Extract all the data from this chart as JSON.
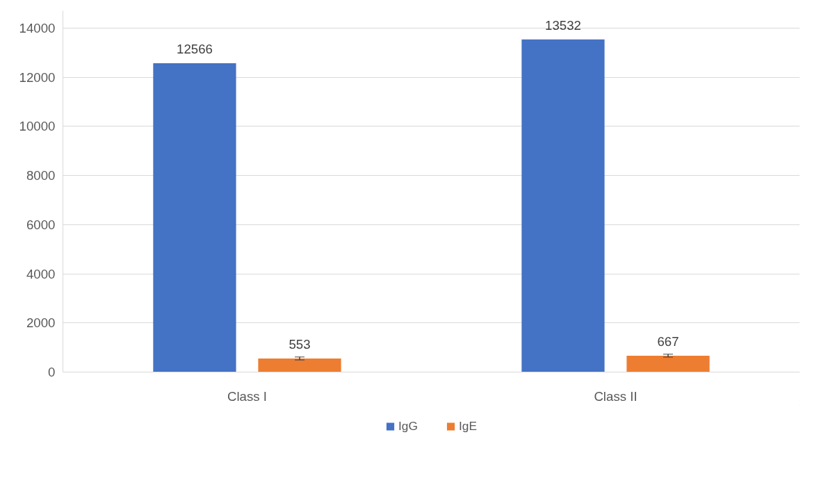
{
  "chart_data": {
    "type": "bar",
    "categories": [
      "Class I",
      "Class II"
    ],
    "series": [
      {
        "name": "IgG",
        "color": "#4472c4",
        "values": [
          12566,
          13532
        ]
      },
      {
        "name": "IgE",
        "color": "#ed7d31",
        "values": [
          553,
          667
        ],
        "errors": [
          60,
          60
        ]
      }
    ],
    "ylim": [
      0,
      14700
    ],
    "yticks": [
      0,
      2000,
      4000,
      6000,
      8000,
      10000,
      12000,
      14000
    ],
    "grid": "y",
    "data_labels": true,
    "legend": "bottom"
  }
}
